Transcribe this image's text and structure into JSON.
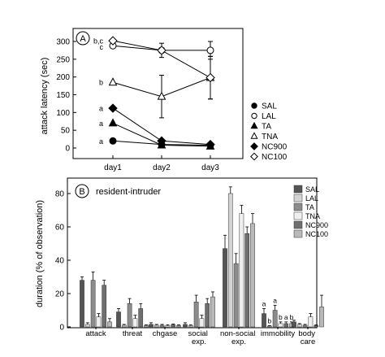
{
  "chart_data": [
    {
      "panel": "A",
      "type": "line",
      "x": [
        "day1",
        "day2",
        "day3"
      ],
      "ylabel": "attack latency (sec)",
      "ylim": [
        0,
        300
      ],
      "yticks": [
        0,
        50,
        100,
        150,
        200,
        250,
        300
      ],
      "grid": false,
      "legend_position": "right",
      "series": [
        {
          "name": "SAL",
          "marker": "circle-filled",
          "values": [
            20,
            10,
            8
          ],
          "errors": [
            0,
            0,
            0
          ]
        },
        {
          "name": "LAL",
          "marker": "circle-open",
          "values": [
            288,
            275,
            275
          ],
          "errors": [
            0,
            20,
            25
          ]
        },
        {
          "name": "TA",
          "marker": "triangle-filled",
          "values": [
            70,
            8,
            5
          ],
          "errors": [
            0,
            0,
            0
          ]
        },
        {
          "name": "TNA",
          "marker": "triangle-open",
          "values": [
            185,
            145,
            198
          ],
          "errors": [
            0,
            60,
            60
          ]
        },
        {
          "name": "NC900",
          "marker": "diamond-filled",
          "values": [
            112,
            20,
            10
          ],
          "errors": [
            0,
            0,
            0
          ]
        },
        {
          "name": "NC100",
          "marker": "diamond-open",
          "values": [
            302,
            275,
            198
          ],
          "errors": [
            0,
            0,
            60
          ]
        }
      ],
      "annotations": [
        {
          "text": "b,c",
          "x": "day1",
          "y": 302
        },
        {
          "text": "c",
          "x": "day1",
          "y": 285
        },
        {
          "text": "b",
          "x": "day1",
          "y": 185
        },
        {
          "text": "a",
          "x": "day1",
          "y": 112
        },
        {
          "text": "a",
          "x": "day1",
          "y": 70
        },
        {
          "text": "a",
          "x": "day1",
          "y": 20
        }
      ]
    },
    {
      "panel": "B",
      "type": "bar",
      "title": "resident-intruder",
      "ylabel": "duration (% of observation)",
      "ylim": [
        0,
        80
      ],
      "yticks": [
        0,
        20,
        40,
        60,
        80
      ],
      "grid": false,
      "legend_position": "top-right",
      "categories": [
        "attack",
        "threat",
        "chgase",
        "social exp.",
        "non-social exp.",
        "immobility",
        "body care"
      ],
      "series": [
        {
          "name": "SAL",
          "color": "#555555",
          "values": [
            28,
            9,
            1.5,
            1.5,
            47,
            8,
            3
          ],
          "errors": [
            2,
            2,
            1,
            1,
            8,
            3,
            1
          ]
        },
        {
          "name": "LAL",
          "color": "#d4d4d4",
          "values": [
            1.5,
            1,
            1,
            0.8,
            80,
            0.5,
            1.5
          ],
          "errors": [
            1,
            0.5,
            0.5,
            0.5,
            4,
            0.3,
            0.5
          ]
        },
        {
          "name": "TA",
          "color": "#8c8c8c",
          "values": [
            28,
            14,
            1,
            15,
            38,
            10,
            1
          ],
          "errors": [
            5,
            3,
            0.5,
            4,
            6,
            3,
            0.5
          ]
        },
        {
          "name": "TNA",
          "color": "#efefef",
          "values": [
            6,
            5,
            0.8,
            5,
            68,
            2,
            6
          ],
          "errors": [
            2,
            2,
            0.5,
            2,
            5,
            1,
            2
          ]
        },
        {
          "name": "NC900",
          "color": "#6f6f6f",
          "values": [
            25,
            11,
            1.3,
            14,
            56,
            2,
            0.8
          ],
          "errors": [
            3,
            3,
            0.5,
            3,
            4,
            1,
            0.4
          ]
        },
        {
          "name": "NC100",
          "color": "#b9b9b9",
          "values": [
            3,
            0.8,
            0.8,
            18,
            62,
            2,
            12
          ],
          "errors": [
            2,
            0.5,
            0.5,
            3,
            6,
            1,
            7
          ]
        }
      ],
      "annotations": [
        {
          "text": "a",
          "category": "immobility",
          "series": "SAL"
        },
        {
          "text": "b",
          "category": "immobility",
          "series": "LAL"
        },
        {
          "text": "a",
          "category": "immobility",
          "series": "TA"
        },
        {
          "text": "b",
          "category": "immobility",
          "series": "TNA"
        },
        {
          "text": "a",
          "category": "immobility",
          "series": "NC900"
        },
        {
          "text": "b",
          "category": "immobility",
          "series": "NC100"
        }
      ]
    }
  ]
}
